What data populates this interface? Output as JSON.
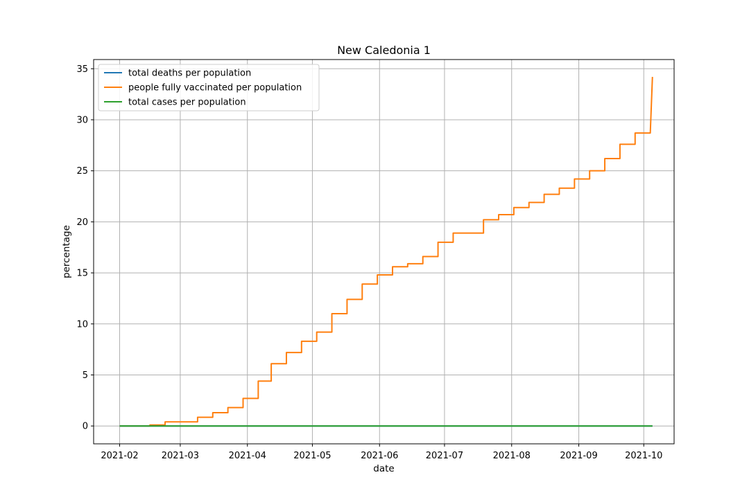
{
  "chart_data": {
    "type": "line",
    "title": "New Caledonia 1",
    "xlabel": "date",
    "ylabel": "percentage",
    "xlim": [
      "2021-01-20",
      "2021-10-15"
    ],
    "ylim": [
      -1.75,
      35.9
    ],
    "x_ticks": [
      "2021-02",
      "2021-03",
      "2021-04",
      "2021-05",
      "2021-06",
      "2021-07",
      "2021-08",
      "2021-09",
      "2021-10"
    ],
    "y_ticks": [
      0,
      5,
      10,
      15,
      20,
      25,
      30,
      35
    ],
    "grid": true,
    "legend_position": "top-left",
    "series": [
      {
        "name": "total deaths per population",
        "color": "#1f77b4",
        "points": [
          [
            "2021-02-01",
            0
          ],
          [
            "2021-10-05",
            0
          ]
        ]
      },
      {
        "name": "people fully vaccinated per population",
        "color": "#ff7f0e",
        "points": [
          [
            "2021-02-01",
            0
          ],
          [
            "2021-02-15",
            0
          ],
          [
            "2021-02-15",
            0.1
          ],
          [
            "2021-02-22",
            0.1
          ],
          [
            "2021-02-22",
            0.4
          ],
          [
            "2021-03-09",
            0.4
          ],
          [
            "2021-03-09",
            0.85
          ],
          [
            "2021-03-16",
            0.85
          ],
          [
            "2021-03-16",
            1.3
          ],
          [
            "2021-03-23",
            1.3
          ],
          [
            "2021-03-23",
            1.8
          ],
          [
            "2021-03-30",
            1.8
          ],
          [
            "2021-03-30",
            2.7
          ],
          [
            "2021-04-06",
            2.7
          ],
          [
            "2021-04-06",
            4.4
          ],
          [
            "2021-04-12",
            4.4
          ],
          [
            "2021-04-12",
            6.1
          ],
          [
            "2021-04-19",
            6.1
          ],
          [
            "2021-04-19",
            7.2
          ],
          [
            "2021-04-26",
            7.2
          ],
          [
            "2021-04-26",
            8.3
          ],
          [
            "2021-05-03",
            8.3
          ],
          [
            "2021-05-03",
            9.2
          ],
          [
            "2021-05-10",
            9.2
          ],
          [
            "2021-05-10",
            11.0
          ],
          [
            "2021-05-17",
            11.0
          ],
          [
            "2021-05-17",
            12.4
          ],
          [
            "2021-05-24",
            12.4
          ],
          [
            "2021-05-24",
            13.9
          ],
          [
            "2021-05-31",
            13.9
          ],
          [
            "2021-05-31",
            14.8
          ],
          [
            "2021-06-07",
            14.8
          ],
          [
            "2021-06-07",
            15.6
          ],
          [
            "2021-06-14",
            15.6
          ],
          [
            "2021-06-14",
            15.9
          ],
          [
            "2021-06-21",
            15.9
          ],
          [
            "2021-06-21",
            16.6
          ],
          [
            "2021-06-28",
            16.6
          ],
          [
            "2021-06-28",
            18.0
          ],
          [
            "2021-07-05",
            18.0
          ],
          [
            "2021-07-05",
            18.9
          ],
          [
            "2021-07-19",
            18.9
          ],
          [
            "2021-07-19",
            20.2
          ],
          [
            "2021-07-26",
            20.2
          ],
          [
            "2021-07-26",
            20.7
          ],
          [
            "2021-08-02",
            20.7
          ],
          [
            "2021-08-02",
            21.4
          ],
          [
            "2021-08-09",
            21.4
          ],
          [
            "2021-08-09",
            21.9
          ],
          [
            "2021-08-16",
            21.9
          ],
          [
            "2021-08-16",
            22.7
          ],
          [
            "2021-08-23",
            22.7
          ],
          [
            "2021-08-23",
            23.3
          ],
          [
            "2021-08-30",
            23.3
          ],
          [
            "2021-08-30",
            24.2
          ],
          [
            "2021-09-06",
            24.2
          ],
          [
            "2021-09-06",
            25.0
          ],
          [
            "2021-09-13",
            25.0
          ],
          [
            "2021-09-13",
            26.2
          ],
          [
            "2021-09-20",
            26.2
          ],
          [
            "2021-09-20",
            27.6
          ],
          [
            "2021-09-27",
            27.6
          ],
          [
            "2021-09-27",
            28.7
          ],
          [
            "2021-10-04",
            28.7
          ],
          [
            "2021-10-05",
            34.2
          ]
        ]
      },
      {
        "name": "total cases per population",
        "color": "#2ca02c",
        "points": [
          [
            "2021-02-01",
            0
          ],
          [
            "2021-10-05",
            0
          ]
        ]
      }
    ]
  }
}
